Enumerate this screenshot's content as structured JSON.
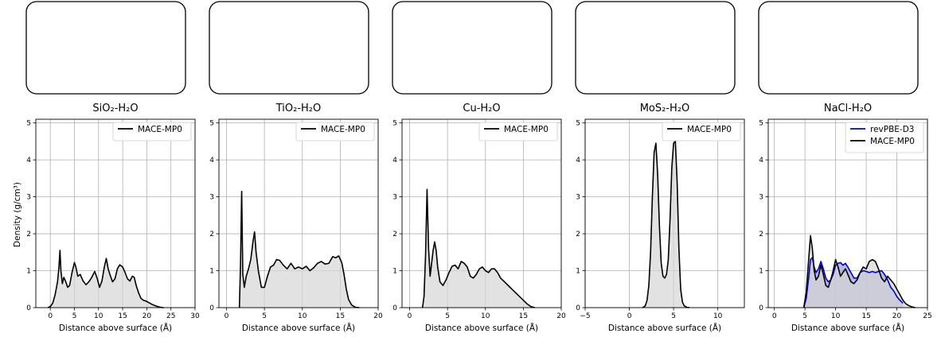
{
  "figure": {
    "ylabel": "Density (g/cm³)"
  },
  "chart_data": [
    {
      "type": "area",
      "title": "SiO₂-H₂O",
      "xlabel": "Distance above surface (Å)",
      "ylabel": "Density (g/cm³)",
      "xlim": [
        -3,
        30
      ],
      "ylim": [
        0,
        5.1
      ],
      "xticks": [
        0,
        5,
        10,
        15,
        20,
        25,
        30
      ],
      "yticks": [
        0,
        1,
        2,
        3,
        4,
        5
      ],
      "grid": true,
      "legend_position": "upper-right",
      "series": [
        {
          "name": "MACE-MP0",
          "color": "#000000",
          "x": [
            -0.5,
            0,
            0.5,
            1,
            1.5,
            1.8,
            2.0,
            2.2,
            2.5,
            2.8,
            3.2,
            3.6,
            4.0,
            4.5,
            5.0,
            5.3,
            5.7,
            6.2,
            6.8,
            7.4,
            8.0,
            8.6,
            9.2,
            9.7,
            10.2,
            10.7,
            11.2,
            11.6,
            12.0,
            12.4,
            12.9,
            13.4,
            13.9,
            14.4,
            15.0,
            15.5,
            16.0,
            16.5,
            17.0,
            17.4,
            17.8,
            18.3,
            18.8,
            19.3,
            19.8,
            20.5,
            21.2,
            22.0,
            22.8,
            23.5
          ],
          "y": [
            0,
            0.03,
            0.12,
            0.35,
            0.7,
            1.1,
            1.55,
            1.0,
            0.65,
            0.82,
            0.7,
            0.55,
            0.6,
            0.95,
            1.22,
            1.1,
            0.85,
            0.9,
            0.72,
            0.62,
            0.7,
            0.82,
            0.98,
            0.8,
            0.55,
            0.72,
            1.1,
            1.33,
            1.05,
            0.88,
            0.7,
            0.78,
            1.05,
            1.16,
            1.1,
            0.95,
            0.78,
            0.72,
            0.85,
            0.82,
            0.6,
            0.4,
            0.25,
            0.2,
            0.18,
            0.13,
            0.08,
            0.04,
            0.01,
            0
          ]
        }
      ]
    },
    {
      "type": "area",
      "title": "TiO₂-H₂O",
      "xlabel": "Distance above surface (Å)",
      "ylabel": "",
      "xlim": [
        -1,
        20
      ],
      "ylim": [
        0,
        5.1
      ],
      "xticks": [
        0,
        5,
        10,
        15,
        20
      ],
      "yticks": [
        0,
        1,
        2,
        3,
        4,
        5
      ],
      "grid": true,
      "legend_position": "upper-right",
      "series": [
        {
          "name": "MACE-MP0",
          "color": "#000000",
          "x": [
            1.7,
            1.85,
            2.0,
            2.15,
            2.35,
            2.6,
            2.9,
            3.2,
            3.5,
            3.7,
            3.9,
            4.2,
            4.6,
            5.0,
            5.4,
            5.8,
            6.2,
            6.6,
            7.0,
            7.5,
            8.0,
            8.5,
            9.0,
            9.5,
            10.0,
            10.5,
            11.0,
            11.5,
            12.0,
            12.5,
            13.0,
            13.5,
            14.0,
            14.4,
            14.8,
            15.2,
            15.5,
            15.8,
            16.1,
            16.5,
            17.0,
            17.5
          ],
          "y": [
            0,
            1.2,
            3.15,
            0.9,
            0.55,
            0.85,
            1.05,
            1.3,
            1.8,
            2.05,
            1.5,
            1.0,
            0.55,
            0.55,
            0.85,
            1.1,
            1.15,
            1.3,
            1.28,
            1.15,
            1.05,
            1.2,
            1.05,
            1.1,
            1.05,
            1.12,
            1.0,
            1.08,
            1.2,
            1.25,
            1.18,
            1.2,
            1.38,
            1.35,
            1.4,
            1.22,
            0.9,
            0.5,
            0.22,
            0.07,
            0.01,
            0
          ]
        }
      ]
    },
    {
      "type": "area",
      "title": "Cu-H₂O",
      "xlabel": "Distance above surface (Å)",
      "ylabel": "",
      "xlim": [
        -1,
        20
      ],
      "ylim": [
        0,
        5.1
      ],
      "xticks": [
        0,
        5,
        10,
        15,
        20
      ],
      "yticks": [
        0,
        1,
        2,
        3,
        4,
        5
      ],
      "grid": true,
      "legend_position": "upper-right",
      "series": [
        {
          "name": "MACE-MP0",
          "color": "#000000",
          "x": [
            1.7,
            1.9,
            2.1,
            2.3,
            2.5,
            2.7,
            2.9,
            3.1,
            3.3,
            3.5,
            3.7,
            4.0,
            4.4,
            4.8,
            5.2,
            5.6,
            6.0,
            6.4,
            6.8,
            7.2,
            7.6,
            8.0,
            8.4,
            8.8,
            9.2,
            9.6,
            10.0,
            10.4,
            10.8,
            11.2,
            11.6,
            12.0,
            12.5,
            13.0,
            13.5,
            14.0,
            14.5,
            15.0,
            15.5,
            16.0,
            16.5
          ],
          "y": [
            0,
            0.3,
            1.4,
            3.2,
            1.6,
            0.85,
            1.2,
            1.55,
            1.78,
            1.55,
            1.1,
            0.7,
            0.6,
            0.75,
            0.95,
            1.12,
            1.15,
            1.05,
            1.25,
            1.2,
            1.1,
            0.85,
            0.8,
            0.9,
            1.05,
            1.1,
            1.0,
            0.95,
            1.05,
            1.05,
            0.95,
            0.8,
            0.7,
            0.6,
            0.5,
            0.4,
            0.3,
            0.2,
            0.1,
            0.03,
            0
          ]
        }
      ]
    },
    {
      "type": "area",
      "title": "MoS₂-H₂O",
      "xlabel": "Distance above surface (Å)",
      "ylabel": "",
      "xlim": [
        -5,
        13
      ],
      "ylim": [
        0,
        5.1
      ],
      "xticks": [
        -5,
        0,
        5,
        10
      ],
      "yticks": [
        0,
        1,
        2,
        3,
        4,
        5
      ],
      "grid": true,
      "legend_position": "upper-right",
      "series": [
        {
          "name": "MACE-MP0",
          "color": "#000000",
          "x": [
            1.5,
            1.8,
            2.0,
            2.2,
            2.4,
            2.6,
            2.8,
            3.0,
            3.2,
            3.4,
            3.6,
            3.8,
            4.0,
            4.2,
            4.4,
            4.6,
            4.8,
            5.0,
            5.2,
            5.4,
            5.6,
            5.8,
            6.0,
            6.2,
            6.5,
            6.8
          ],
          "y": [
            0,
            0.05,
            0.2,
            0.6,
            1.5,
            3.0,
            4.2,
            4.45,
            3.6,
            2.2,
            1.2,
            0.85,
            0.8,
            0.9,
            1.3,
            2.4,
            3.8,
            4.45,
            4.5,
            3.4,
            1.6,
            0.5,
            0.15,
            0.05,
            0.01,
            0
          ]
        }
      ]
    },
    {
      "type": "area",
      "title": "NaCl-H₂O",
      "xlabel": "Distance above surface (Å)",
      "ylabel": "",
      "xlim": [
        -1,
        25
      ],
      "ylim": [
        0,
        5.1
      ],
      "xticks": [
        0,
        5,
        10,
        15,
        20,
        25
      ],
      "yticks": [
        0,
        1,
        2,
        3,
        4,
        5
      ],
      "grid": true,
      "legend_position": "upper-right",
      "series": [
        {
          "name": "revPBE-D3",
          "color": "#0000cc",
          "x": [
            4.8,
            5.2,
            5.6,
            5.9,
            6.2,
            6.5,
            6.8,
            7.2,
            7.6,
            8.0,
            8.4,
            8.8,
            9.2,
            9.6,
            10.0,
            10.4,
            10.8,
            11.2,
            11.6,
            12.0,
            12.5,
            13.0,
            13.5,
            14.0,
            14.5,
            15.0,
            15.5,
            16.0,
            16.5,
            17.0,
            17.5,
            18.0,
            18.5,
            19.0,
            19.5,
            20.0,
            20.5,
            21.0
          ],
          "y": [
            0,
            0.25,
            0.8,
            1.3,
            1.35,
            1.1,
            0.95,
            1.05,
            1.25,
            1.05,
            0.8,
            0.7,
            0.75,
            0.9,
            1.15,
            1.2,
            1.22,
            1.15,
            1.2,
            1.1,
            0.95,
            0.8,
            0.8,
            0.95,
            1.0,
            0.98,
            0.95,
            0.98,
            0.95,
            0.98,
            1.0,
            0.9,
            0.75,
            0.55,
            0.45,
            0.3,
            0.2,
            0.12
          ]
        },
        {
          "name": "MACE-MP0",
          "color": "#000000",
          "x": [
            4.8,
            5.2,
            5.6,
            5.9,
            6.2,
            6.5,
            6.8,
            7.2,
            7.6,
            8.0,
            8.4,
            8.8,
            9.2,
            9.6,
            10.0,
            10.4,
            10.8,
            11.2,
            11.6,
            12.0,
            12.5,
            13.0,
            13.5,
            14.0,
            14.5,
            15.0,
            15.5,
            16.0,
            16.5,
            17.0,
            17.5,
            18.0,
            18.5,
            19.0,
            19.5,
            20.0,
            20.5,
            21.0,
            21.5,
            22.0,
            22.5,
            23.0
          ],
          "y": [
            0,
            0.4,
            1.3,
            1.95,
            1.6,
            1.0,
            0.75,
            0.85,
            1.15,
            0.9,
            0.6,
            0.55,
            0.75,
            1.0,
            1.3,
            1.1,
            0.85,
            0.95,
            1.05,
            0.9,
            0.7,
            0.65,
            0.75,
            0.95,
            1.1,
            1.05,
            1.25,
            1.3,
            1.25,
            1.05,
            0.8,
            0.7,
            0.85,
            0.75,
            0.65,
            0.5,
            0.35,
            0.2,
            0.1,
            0.05,
            0.02,
            0
          ]
        }
      ]
    }
  ],
  "snapshots": [
    {
      "name": "sio2-snapshot",
      "atoms": {
        "surface": "#f5d6b0",
        "surface_alt": "#cc1a1a",
        "oxygen": "#dd0000",
        "hydrogen": "#d8d8d8"
      }
    },
    {
      "name": "tio2-snapshot",
      "atoms": {
        "surface": "#eeeeee",
        "surface_alt": "#dd0000",
        "oxygen": "#dd0000",
        "hydrogen": "#d8d8d8"
      }
    },
    {
      "name": "cu-snapshot",
      "atoms": {
        "surface": "#e0893a",
        "oxygen": "#dd0000",
        "hydrogen": "#d8d8d8"
      }
    },
    {
      "name": "mos2-snapshot",
      "atoms": {
        "surface": "#c8c800",
        "surface_alt": "#3fb8c0",
        "oxygen": "#dd0000",
        "hydrogen": "#d8d8d8"
      }
    },
    {
      "name": "nacl-snapshot",
      "atoms": {
        "surface": "#22dd22",
        "surface_alt": "#990099",
        "oxygen": "#dd0000",
        "hydrogen": "#d8d8d8"
      }
    }
  ],
  "style": {
    "fill_color": "#d6d6d6",
    "fill_color_blue": "#9a9ad8"
  }
}
